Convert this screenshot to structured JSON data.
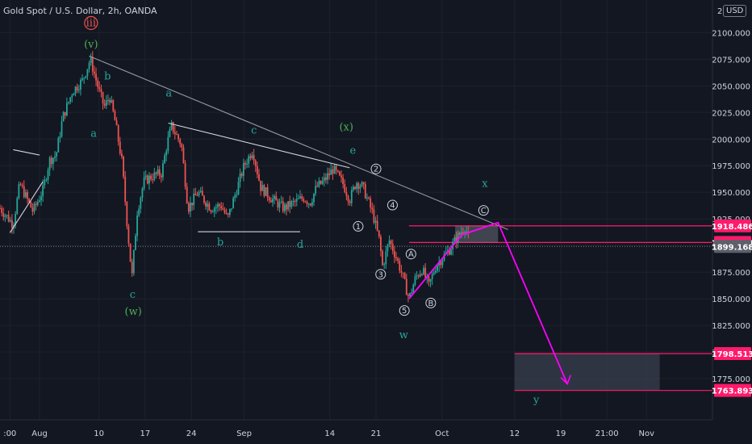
{
  "header": {
    "title": "Gold Spot / U.S. Dollar, 2h, OANDA",
    "currency": "USD"
  },
  "colors": {
    "background": "#131722",
    "up": "#26a69a",
    "down": "#ef5350",
    "trendline": "#9598a1",
    "target": "#ff00ff",
    "level": "#ff1a6b",
    "wave_green": "#4caf50",
    "wave_teal": "#26a69a",
    "axis_text": "#d1d4dc"
  },
  "chart_data": {
    "type": "candlestick",
    "title": "Gold Spot / U.S. Dollar, 2h, OANDA",
    "y_axis": {
      "range": [
        1750,
        2120
      ],
      "tick_labels": [
        "2100.000",
        "2075.000",
        "2050.000",
        "2025.000",
        "2000.000",
        "1975.000",
        "1950.000",
        "1925.000",
        "1875.000",
        "1850.000",
        "1825.000",
        "1800.000",
        "1775.000"
      ],
      "partial_labels": [
        "2",
        "1925.000"
      ]
    },
    "x_axis": {
      "range_days": [
        -6,
        102
      ],
      "tick_labels": [
        {
          "day": -4.5,
          "label": ":00"
        },
        {
          "day": 0,
          "label": "Aug"
        },
        {
          "day": 9,
          "label": "10"
        },
        {
          "day": 16,
          "label": "17"
        },
        {
          "day": 23,
          "label": "24"
        },
        {
          "day": 31,
          "label": "Sep"
        },
        {
          "day": 44,
          "label": "14"
        },
        {
          "day": 51,
          "label": "21"
        },
        {
          "day": 61,
          "label": "Oct"
        },
        {
          "day": 72,
          "label": "12"
        },
        {
          "day": 79,
          "label": "19"
        },
        {
          "day": 86,
          "label": "21:00"
        },
        {
          "day": 92,
          "label": "Nov"
        }
      ]
    },
    "price_path": [
      [
        -6,
        1935
      ],
      [
        -4,
        1920
      ],
      [
        -3,
        1958
      ],
      [
        -1,
        1932
      ],
      [
        0.5,
        1952
      ],
      [
        1.5,
        1980
      ],
      [
        2.5,
        1985
      ],
      [
        3.5,
        2020
      ],
      [
        5,
        2045
      ],
      [
        6.5,
        2055
      ],
      [
        7.7,
        2075
      ],
      [
        8.8,
        2050
      ],
      [
        9.8,
        2030
      ],
      [
        10.6,
        2040
      ],
      [
        11.5,
        2015
      ],
      [
        12.5,
        1978
      ],
      [
        13.2,
        1925
      ],
      [
        14,
        1870
      ],
      [
        14.8,
        1932
      ],
      [
        15.8,
        1960
      ],
      [
        17,
        1965
      ],
      [
        18.5,
        1968
      ],
      [
        19.3,
        1995
      ],
      [
        20,
        2012
      ],
      [
        21.5,
        1995
      ],
      [
        22.5,
        1935
      ],
      [
        24,
        1950
      ],
      [
        26,
        1935
      ],
      [
        27.5,
        1938
      ],
      [
        28.5,
        1925
      ],
      [
        29.5,
        1945
      ],
      [
        31,
        1975
      ],
      [
        32.3,
        1990
      ],
      [
        33.5,
        1955
      ],
      [
        35,
        1945
      ],
      [
        37,
        1935
      ],
      [
        38.5,
        1940
      ],
      [
        40,
        1945
      ],
      [
        41,
        1940
      ],
      [
        42,
        1955
      ],
      [
        43,
        1960
      ],
      [
        44.5,
        1972
      ],
      [
        46,
        1958
      ],
      [
        47,
        1943
      ],
      [
        48,
        1960
      ],
      [
        49,
        1955
      ],
      [
        50.5,
        1930
      ],
      [
        51.5,
        1905
      ],
      [
        52,
        1880
      ],
      [
        53,
        1905
      ],
      [
        54,
        1890
      ],
      [
        55,
        1872
      ],
      [
        56,
        1850
      ],
      [
        57,
        1870
      ],
      [
        58,
        1878
      ],
      [
        59,
        1862
      ],
      [
        60,
        1880
      ],
      [
        61,
        1888
      ],
      [
        62,
        1895
      ],
      [
        63,
        1905
      ],
      [
        63.8,
        1912
      ],
      [
        64.5,
        1918
      ],
      [
        65.1,
        1905
      ]
    ],
    "horizontal_levels": [
      1918.486,
      1902.877,
      1899.168,
      1798.513,
      1763.893
    ],
    "price_labels": [
      {
        "label": "1918.486",
        "value": 1918.486,
        "style": "level"
      },
      {
        "label": "1902.877",
        "value": 1902.877,
        "style": "level"
      },
      {
        "label": "1899.168",
        "value": 1899.168,
        "style": "current"
      },
      {
        "label": "1798.513",
        "value": 1798.513,
        "style": "level"
      },
      {
        "label": "1763.893",
        "value": 1763.893,
        "style": "level"
      }
    ],
    "target_zone": {
      "from_day": 72,
      "to_day": 94,
      "low": 1763.893,
      "high": 1798.513
    },
    "projection": [
      [
        64,
        1910
      ],
      [
        69.5,
        1921.5
      ],
      [
        80,
        1770
      ]
    ],
    "wave_labels": [
      {
        "text": "iii",
        "day": 7.8,
        "price": 2106,
        "color": "#ef5350",
        "circle": true
      },
      {
        "text": "(v)",
        "day": 7.8,
        "price": 2086,
        "color": "#4caf50"
      },
      {
        "text": "b",
        "day": 10.3,
        "price": 2056,
        "color": "#26a69a"
      },
      {
        "text": "a",
        "day": 8.2,
        "price": 2002,
        "color": "#26a69a"
      },
      {
        "text": "c",
        "day": 14.1,
        "price": 1851,
        "color": "#26a69a"
      },
      {
        "text": "(w)",
        "day": 14.2,
        "price": 1835,
        "color": "#4caf50"
      },
      {
        "text": "a",
        "day": 19.6,
        "price": 2040,
        "color": "#26a69a"
      },
      {
        "text": "b",
        "day": 27.4,
        "price": 1900,
        "color": "#26a69a"
      },
      {
        "text": "c",
        "day": 32.5,
        "price": 2005,
        "color": "#26a69a"
      },
      {
        "text": "d",
        "day": 39.5,
        "price": 1898,
        "color": "#26a69a"
      },
      {
        "text": "(x)",
        "day": 46.5,
        "price": 2008,
        "color": "#4caf50"
      },
      {
        "text": "e",
        "day": 47.5,
        "price": 1986,
        "color": "#26a69a"
      },
      {
        "text": "x",
        "day": 67.5,
        "price": 1955,
        "color": "#26a69a"
      },
      {
        "text": "w",
        "day": 55.2,
        "price": 1813,
        "color": "#26a69a"
      },
      {
        "text": "y",
        "day": 75.3,
        "price": 1752,
        "color": "#26a69a"
      }
    ],
    "circled_labels": [
      {
        "text": "1",
        "day": 48.3,
        "price": 1918
      },
      {
        "text": "2",
        "day": 51,
        "price": 1972
      },
      {
        "text": "3",
        "day": 51.7,
        "price": 1873
      },
      {
        "text": "4",
        "day": 53.5,
        "price": 1938
      },
      {
        "text": "5",
        "day": 55.3,
        "price": 1839
      },
      {
        "text": "A",
        "day": 56.3,
        "price": 1892
      },
      {
        "text": "B",
        "day": 59.3,
        "price": 1846
      },
      {
        "text": "C",
        "day": 67.3,
        "price": 1933
      }
    ],
    "lines": [
      {
        "from": [
          7.5,
          2078
        ],
        "to": [
          71,
          1915
        ],
        "color": "#9598a1"
      },
      {
        "from": [
          19.5,
          2015
        ],
        "to": [
          47,
          1973
        ],
        "color": "#d1d4dc"
      },
      {
        "from": [
          -4,
          1990
        ],
        "to": [
          0,
          1985
        ],
        "color": "#d1d4dc"
      },
      {
        "from": [
          -4.5,
          1912
        ],
        "to": [
          0.5,
          1960
        ],
        "color": "#d1d4dc"
      },
      {
        "from": [
          24,
          1913
        ],
        "to": [
          39.5,
          1913
        ],
        "color": "#d1d4dc"
      },
      {
        "from": [
          56,
          1850
        ],
        "to": [
          64,
          1910
        ],
        "color": "#ff00ff"
      }
    ]
  }
}
